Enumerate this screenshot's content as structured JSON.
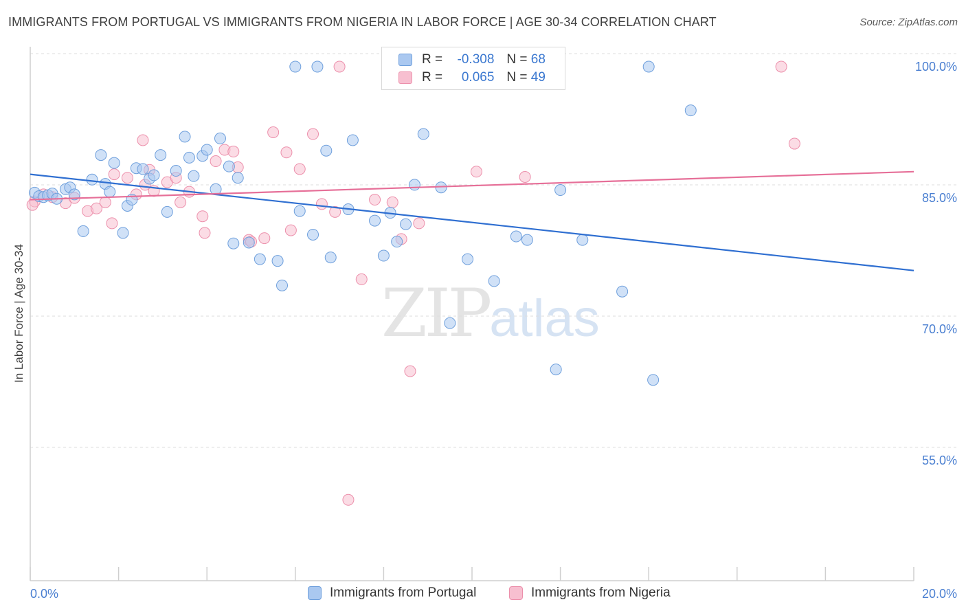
{
  "header": {
    "title": "IMMIGRANTS FROM PORTUGAL VS IMMIGRANTS FROM NIGERIA IN LABOR FORCE | AGE 30-34 CORRELATION CHART",
    "source": "Source: ZipAtlas.com"
  },
  "watermark": {
    "zip": "ZIP",
    "atlas": "atlas"
  },
  "legend": {
    "rows": [
      {
        "r_label": "R =",
        "r_value": "-0.308",
        "n_label": "N =",
        "n_value": "68"
      },
      {
        "r_label": "R =",
        "r_value": "0.065",
        "n_label": "N =",
        "n_value": "49"
      }
    ]
  },
  "bottom_legend": {
    "portugal": "Immigrants from Portugal",
    "nigeria": "Immigrants from Nigeria"
  },
  "colors": {
    "portugal_fill": "#aac8f0",
    "portugal_stroke": "#6e9fdc",
    "portugal_line": "#2f6fd1",
    "nigeria_fill": "#f7bfd0",
    "nigeria_stroke": "#ec8fab",
    "nigeria_line": "#e66f98",
    "tick_text": "#4a7fd1"
  },
  "chart_data": {
    "type": "scatter",
    "title": "IMMIGRANTS FROM PORTUGAL VS IMMIGRANTS FROM NIGERIA IN LABOR FORCE | AGE 30-34 CORRELATION CHART",
    "xlabel": "",
    "ylabel": "In Labor Force | Age 30-34",
    "xlim": [
      0,
      20
    ],
    "ylim": [
      40,
      101.5
    ],
    "x_ticks": [
      "0.0%",
      "20.0%"
    ],
    "y_ticks": [
      {
        "value": 100,
        "label": "100.0%"
      },
      {
        "value": 85,
        "label": "85.0%"
      },
      {
        "value": 70,
        "label": "70.0%"
      },
      {
        "value": 55,
        "label": "55.0%"
      }
    ],
    "grid": true,
    "series": [
      {
        "name": "Immigrants from Portugal",
        "color": "#6e9fdc",
        "trend": {
          "x": [
            0,
            20
          ],
          "y": [
            87.7,
            76.7
          ]
        },
        "points": [
          [
            0.1,
            85.6
          ],
          [
            0.2,
            85.2
          ],
          [
            0.3,
            85.1
          ],
          [
            0.4,
            85.3
          ],
          [
            0.5,
            85.5
          ],
          [
            0.6,
            84.9
          ],
          [
            0.8,
            86.0
          ],
          [
            0.9,
            86.2
          ],
          [
            1.0,
            85.4
          ],
          [
            1.2,
            81.2
          ],
          [
            1.4,
            87.1
          ],
          [
            1.6,
            89.9
          ],
          [
            1.7,
            86.6
          ],
          [
            1.8,
            85.7
          ],
          [
            1.9,
            89.0
          ],
          [
            2.1,
            81.0
          ],
          [
            2.2,
            84.1
          ],
          [
            2.3,
            84.8
          ],
          [
            2.4,
            88.4
          ],
          [
            2.55,
            88.3
          ],
          [
            2.7,
            87.2
          ],
          [
            2.8,
            87.6
          ],
          [
            2.95,
            89.9
          ],
          [
            3.1,
            83.4
          ],
          [
            3.3,
            88.1
          ],
          [
            3.5,
            92.0
          ],
          [
            3.6,
            89.6
          ],
          [
            3.7,
            87.5
          ],
          [
            3.9,
            89.8
          ],
          [
            4.0,
            90.5
          ],
          [
            4.2,
            86.0
          ],
          [
            4.3,
            91.8
          ],
          [
            4.5,
            88.6
          ],
          [
            4.6,
            79.8
          ],
          [
            4.7,
            87.3
          ],
          [
            4.95,
            79.9
          ],
          [
            5.2,
            78.0
          ],
          [
            5.6,
            77.8
          ],
          [
            5.7,
            75.0
          ],
          [
            6.1,
            83.5
          ],
          [
            6.0,
            100.0
          ],
          [
            6.4,
            80.8
          ],
          [
            6.5,
            100.0
          ],
          [
            6.7,
            90.4
          ],
          [
            6.8,
            78.2
          ],
          [
            7.2,
            83.7
          ],
          [
            7.3,
            91.6
          ],
          [
            7.8,
            82.4
          ],
          [
            8.0,
            78.4
          ],
          [
            8.15,
            83.3
          ],
          [
            8.3,
            80.0
          ],
          [
            8.5,
            82.0
          ],
          [
            8.7,
            86.5
          ],
          [
            8.9,
            92.3
          ],
          [
            9.3,
            86.2
          ],
          [
            9.5,
            70.7
          ],
          [
            9.9,
            78.0
          ],
          [
            10.5,
            75.5
          ],
          [
            11.0,
            80.6
          ],
          [
            11.25,
            80.2
          ],
          [
            11.9,
            65.4
          ],
          [
            12.0,
            85.9
          ],
          [
            12.5,
            80.2
          ],
          [
            13.4,
            74.3
          ],
          [
            14.1,
            64.2
          ],
          [
            14.95,
            95.0
          ],
          [
            11.0,
            100.0
          ],
          [
            14.0,
            100.0
          ]
        ]
      },
      {
        "name": "Immigrants from Nigeria",
        "color": "#ec8fab",
        "trend": {
          "x": [
            0,
            20
          ],
          "y": [
            84.8,
            88.0
          ]
        },
        "points": [
          [
            0.1,
            84.6
          ],
          [
            0.3,
            85.4
          ],
          [
            0.5,
            85.1
          ],
          [
            0.8,
            84.4
          ],
          [
            1.0,
            85.0
          ],
          [
            1.3,
            83.5
          ],
          [
            1.5,
            83.8
          ],
          [
            1.7,
            84.5
          ],
          [
            1.85,
            82.1
          ],
          [
            1.9,
            87.7
          ],
          [
            2.2,
            87.3
          ],
          [
            2.4,
            85.4
          ],
          [
            2.55,
            91.6
          ],
          [
            2.7,
            88.2
          ],
          [
            2.8,
            85.8
          ],
          [
            3.1,
            86.8
          ],
          [
            3.3,
            87.3
          ],
          [
            3.4,
            84.5
          ],
          [
            3.6,
            85.7
          ],
          [
            3.9,
            82.9
          ],
          [
            3.95,
            81.0
          ],
          [
            4.2,
            89.2
          ],
          [
            4.4,
            90.5
          ],
          [
            4.6,
            90.3
          ],
          [
            4.7,
            88.5
          ],
          [
            4.95,
            80.2
          ],
          [
            5.0,
            80.0
          ],
          [
            5.3,
            80.4
          ],
          [
            5.5,
            92.5
          ],
          [
            5.8,
            90.2
          ],
          [
            5.9,
            81.3
          ],
          [
            6.1,
            88.3
          ],
          [
            6.4,
            92.3
          ],
          [
            6.6,
            84.3
          ],
          [
            6.9,
            83.4
          ],
          [
            7.0,
            100.0
          ],
          [
            7.2,
            50.5
          ],
          [
            7.5,
            75.7
          ],
          [
            7.8,
            84.8
          ],
          [
            8.2,
            84.5
          ],
          [
            8.4,
            80.3
          ],
          [
            8.6,
            65.2
          ],
          [
            8.8,
            82.1
          ],
          [
            10.1,
            88.0
          ],
          [
            11.2,
            87.4
          ],
          [
            17.0,
            100.0
          ],
          [
            17.3,
            91.2
          ],
          [
            2.6,
            86.5
          ],
          [
            0.05,
            84.2
          ]
        ]
      }
    ]
  }
}
